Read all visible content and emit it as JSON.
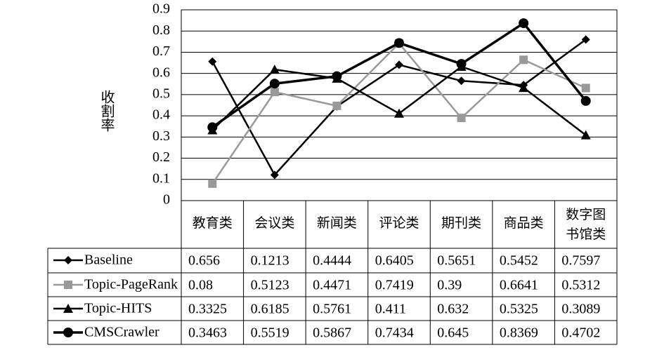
{
  "chart_data": {
    "type": "line",
    "y_label": "收割率",
    "categories": [
      "教育类",
      "会议类",
      "新闻类",
      "评论类",
      "期刊类",
      "商品类",
      "数字图书馆类"
    ],
    "ylim": [
      0,
      0.9
    ],
    "yticks": [
      0,
      0.1,
      0.2,
      0.3,
      0.4,
      0.5,
      0.6,
      0.7,
      0.8,
      0.9
    ],
    "grid": true,
    "series": [
      {
        "name": "Baseline",
        "color": "#000000",
        "marker": "diamond",
        "values": [
          0.656,
          0.1213,
          0.4444,
          0.6405,
          0.5651,
          0.5452,
          0.7597
        ]
      },
      {
        "name": "Topic-PageRank",
        "color": "#999999",
        "marker": "square",
        "values": [
          0.08,
          0.5123,
          0.4471,
          0.7419,
          0.39,
          0.6641,
          0.5312
        ]
      },
      {
        "name": "Topic-HITS",
        "color": "#000000",
        "marker": "triangle",
        "values": [
          0.3325,
          0.6185,
          0.5761,
          0.411,
          0.632,
          0.5325,
          0.3089
        ]
      },
      {
        "name": "CMSCrawler",
        "color": "#000000",
        "marker": "circle",
        "values": [
          0.3463,
          0.5519,
          0.5867,
          0.7434,
          0.645,
          0.8369,
          0.4702
        ]
      }
    ]
  }
}
